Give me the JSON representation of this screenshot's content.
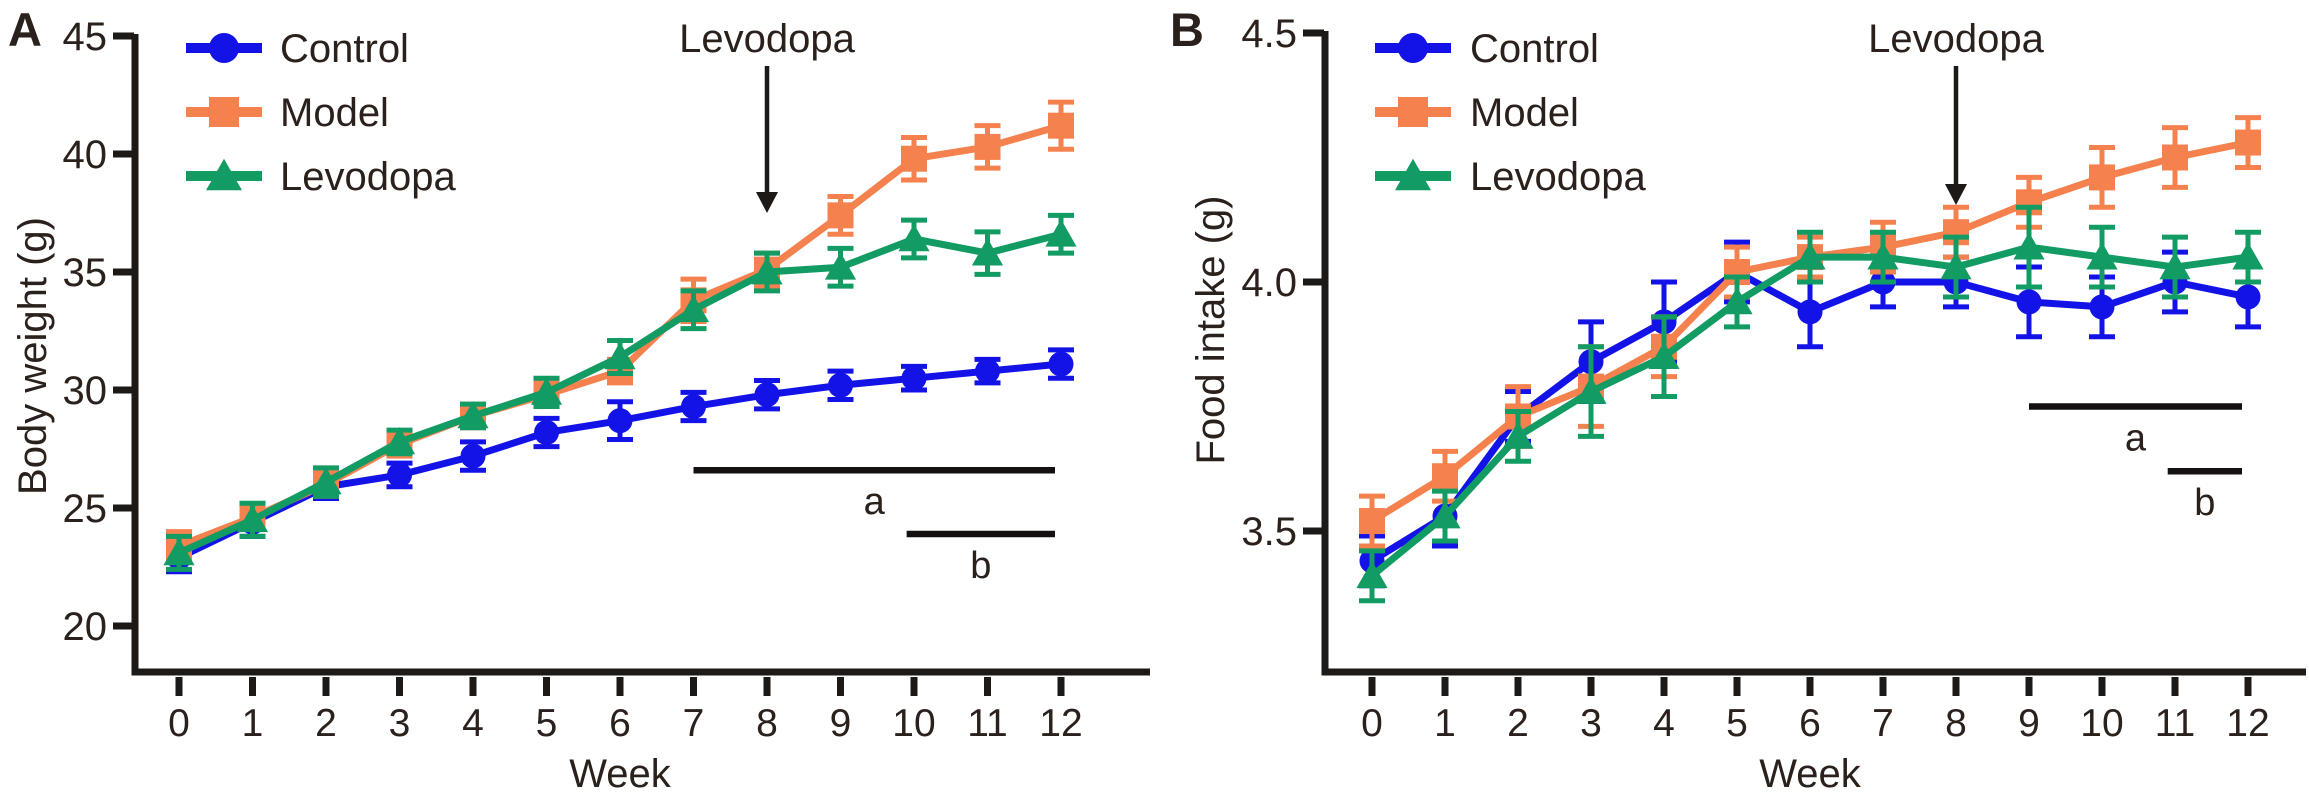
{
  "figure_colors": {
    "control": "#1313E8",
    "model": "#F5824E",
    "levodopa": "#129B63",
    "axis": "#1c1917",
    "text": "#2b211c"
  },
  "chart_data": [
    {
      "type": "line",
      "panel_label": "A",
      "xlabel": "Week",
      "ylabel": "Body weight (g)",
      "x": [
        0,
        1,
        2,
        3,
        4,
        5,
        6,
        7,
        8,
        9,
        10,
        11,
        12
      ],
      "xtick_labels": [
        "0",
        "1",
        "2",
        "3",
        "4",
        "5",
        "6",
        "7",
        "8",
        "9",
        "10",
        "11",
        "12"
      ],
      "yticks": [
        {
          "v": 20,
          "label": "20"
        },
        {
          "v": 25,
          "label": "25"
        },
        {
          "v": 30,
          "label": "30"
        },
        {
          "v": 35,
          "label": "35"
        },
        {
          "v": 40,
          "label": "40"
        },
        {
          "v": 45,
          "label": "45"
        }
      ],
      "ylim": [
        20,
        45
      ],
      "grid": false,
      "legend_position": "top-left",
      "series": [
        {
          "name": "Control",
          "marker": "circle",
          "color": "#1313E8",
          "values": [
            22.9,
            24.4,
            25.9,
            26.4,
            27.2,
            28.2,
            28.7,
            29.3,
            29.8,
            30.2,
            30.5,
            30.8,
            31.1
          ],
          "errors": [
            0.6,
            0.6,
            0.5,
            0.5,
            0.6,
            0.6,
            0.8,
            0.6,
            0.6,
            0.6,
            0.5,
            0.5,
            0.6
          ]
        },
        {
          "name": "Model",
          "marker": "square",
          "color": "#F5824E",
          "values": [
            23.4,
            24.6,
            26.0,
            27.7,
            28.9,
            29.8,
            30.8,
            33.8,
            35.1,
            37.4,
            39.8,
            40.3,
            41.2
          ],
          "errors": [
            0.6,
            0.5,
            0.5,
            0.5,
            0.5,
            0.5,
            0.5,
            0.9,
            0.7,
            0.8,
            0.9,
            0.9,
            1.0
          ]
        },
        {
          "name": "Levodopa",
          "marker": "triangle",
          "color": "#129B63",
          "values": [
            23.1,
            24.5,
            26.1,
            27.8,
            28.9,
            29.9,
            31.4,
            33.4,
            35.0,
            35.2,
            36.4,
            35.8,
            36.6
          ],
          "errors": [
            0.7,
            0.7,
            0.6,
            0.5,
            0.5,
            0.6,
            0.7,
            0.8,
            0.8,
            0.8,
            0.8,
            0.9,
            0.8
          ]
        }
      ],
      "annotation": {
        "text": "Levodopa",
        "week": 8
      },
      "significance_bars": [
        {
          "label": "a",
          "from_week": 7.0,
          "to_week": 12,
          "y_value": 26.6
        },
        {
          "label": "b",
          "from_week": 9.9,
          "to_week": 12,
          "y_value": 23.9
        }
      ]
    },
    {
      "type": "line",
      "panel_label": "B",
      "xlabel": "Week",
      "ylabel": "Food intake (g)",
      "x": [
        0,
        1,
        2,
        3,
        4,
        5,
        6,
        7,
        8,
        9,
        10,
        11,
        12
      ],
      "xtick_labels": [
        "0",
        "1",
        "2",
        "3",
        "4",
        "5",
        "6",
        "7",
        "8",
        "9",
        "10",
        "11",
        "12"
      ],
      "yticks": [
        {
          "v": 3.5,
          "label": "3.5"
        },
        {
          "v": 4.0,
          "label": "4.0"
        },
        {
          "v": 4.5,
          "label": "4.5"
        }
      ],
      "ylim": [
        3.5,
        4.5
      ],
      "grid": false,
      "legend_position": "top-left",
      "series": [
        {
          "name": "Control",
          "marker": "circle",
          "color": "#1313E8",
          "values": [
            3.44,
            3.53,
            3.73,
            3.84,
            3.92,
            4.02,
            3.94,
            4.0,
            4.0,
            3.96,
            3.95,
            4.0,
            3.97
          ],
          "errors": [
            0.05,
            0.06,
            0.05,
            0.08,
            0.08,
            0.06,
            0.07,
            0.05,
            0.05,
            0.07,
            0.06,
            0.06,
            0.06
          ]
        },
        {
          "name": "Model",
          "marker": "square",
          "color": "#F5824E",
          "values": [
            3.52,
            3.61,
            3.73,
            3.79,
            3.87,
            4.02,
            4.05,
            4.07,
            4.1,
            4.16,
            4.21,
            4.25,
            4.28
          ],
          "errors": [
            0.05,
            0.05,
            0.06,
            0.08,
            0.06,
            0.05,
            0.04,
            0.05,
            0.05,
            0.05,
            0.06,
            0.06,
            0.05
          ]
        },
        {
          "name": "Levodopa",
          "marker": "triangle",
          "color": "#129B63",
          "values": [
            3.41,
            3.53,
            3.69,
            3.78,
            3.85,
            3.96,
            4.05,
            4.05,
            4.03,
            4.07,
            4.05,
            4.03,
            4.05
          ],
          "errors": [
            0.05,
            0.05,
            0.05,
            0.09,
            0.08,
            0.05,
            0.05,
            0.05,
            0.06,
            0.08,
            0.06,
            0.06,
            0.05
          ]
        }
      ],
      "annotation": {
        "text": "Levodopa",
        "week": 8
      },
      "significance_bars": [
        {
          "label": "a",
          "from_week": 9.0,
          "to_week": 12,
          "y_value": 3.75
        },
        {
          "label": "b",
          "from_week": 10.9,
          "to_week": 12,
          "y_value": 3.62
        }
      ]
    }
  ]
}
